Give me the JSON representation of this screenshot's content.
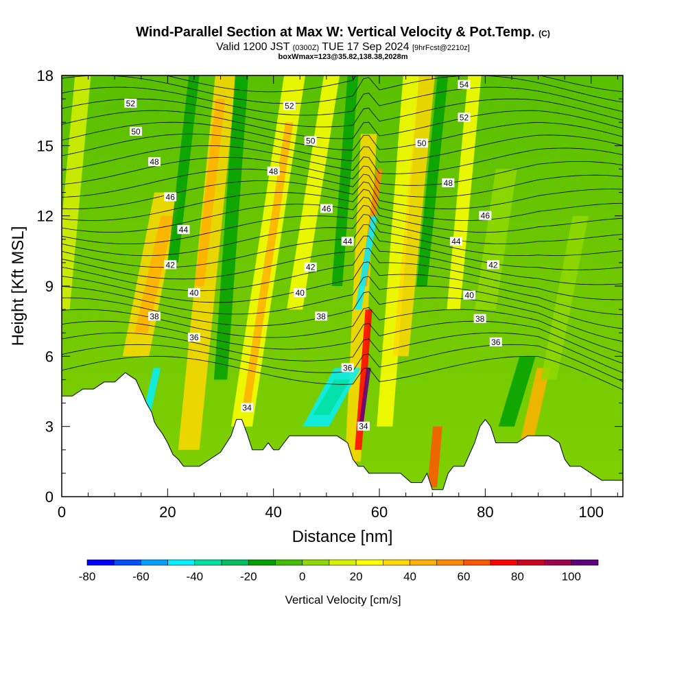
{
  "header": {
    "title": "Wind-Parallel Section at Max W: Vertical Velocity & Pot.Temp.",
    "title_mark": "(C)",
    "valid_prefix": "Valid 1200 JST",
    "valid_utc": "(0300Z)",
    "valid_date": "TUE 17 Sep 2024",
    "forecast": "[9hrFcst@2210z]",
    "box_info": "boxWmax=123@35.82,138.38,2028m"
  },
  "chart_data": {
    "type": "heatmap",
    "xlabel": "Distance [nm]",
    "ylabel": "Height [Kft MSL]",
    "xlim": [
      0,
      106
    ],
    "ylim": [
      0,
      18
    ],
    "x_ticks": [
      0,
      20,
      40,
      60,
      80,
      100
    ],
    "y_ticks": [
      0,
      3,
      6,
      9,
      12,
      15,
      18
    ],
    "x_tick_labels": [
      "0",
      "20",
      "40",
      "60",
      "80",
      "100"
    ],
    "y_tick_labels": [
      "0",
      "3",
      "6",
      "9",
      "12",
      "15",
      "18"
    ],
    "terrain": {
      "x": [
        0,
        2,
        4,
        6,
        8,
        10,
        12,
        14,
        15,
        16,
        17,
        17.5,
        18,
        19,
        20,
        21,
        22,
        23,
        24,
        26,
        28,
        30,
        32,
        33,
        34,
        35,
        36,
        37,
        38,
        39,
        40,
        41,
        42,
        43,
        44,
        46,
        48,
        50,
        52,
        54,
        55,
        56,
        57,
        58,
        59,
        60,
        62,
        64,
        66,
        67,
        68,
        69,
        70,
        71,
        72,
        73,
        74,
        76,
        78,
        79,
        80,
        81,
        82,
        84,
        86,
        88,
        90,
        92,
        94,
        95,
        96,
        98,
        100,
        102,
        104,
        106
      ],
      "y": [
        4.3,
        4.3,
        4.6,
        4.6,
        4.9,
        4.9,
        5.3,
        5.0,
        4.5,
        4.0,
        3.6,
        3.2,
        3.0,
        2.7,
        2.3,
        1.8,
        1.6,
        1.3,
        1.3,
        1.3,
        1.6,
        1.9,
        2.6,
        3.3,
        3.3,
        2.7,
        2.0,
        2.0,
        2.0,
        2.3,
        2.0,
        2.0,
        2.3,
        2.6,
        2.6,
        2.6,
        2.6,
        2.6,
        2.6,
        2.3,
        1.6,
        1.3,
        1.3,
        1.0,
        1.0,
        1.0,
        1.0,
        1.0,
        0.6,
        0.6,
        0.6,
        1.0,
        0.3,
        0.3,
        0.3,
        1.0,
        1.3,
        1.3,
        2.3,
        3.0,
        3.3,
        3.0,
        2.3,
        2.3,
        2.3,
        2.6,
        2.6,
        2.6,
        2.3,
        1.6,
        1.3,
        1.3,
        1.0,
        0.7,
        0.7,
        0.7
      ]
    },
    "theta_contours": [
      {
        "value": 34,
        "label_x": 35,
        "label_y": 3.8
      },
      {
        "value": 36,
        "label_x": 25,
        "label_y": 6.8
      },
      {
        "value": 38,
        "label_x": 17.5,
        "label_y": 7.7
      },
      {
        "value": 40,
        "label_x": 25,
        "label_y": 8.7
      },
      {
        "value": 42,
        "label_x": 20.5,
        "label_y": 9.9
      },
      {
        "value": 44,
        "label_x": 23,
        "label_y": 11.4
      },
      {
        "value": 46,
        "label_x": 20.5,
        "label_y": 12.8
      },
      {
        "value": 48,
        "label_x": 17.5,
        "label_y": 14.3
      },
      {
        "value": 50,
        "label_x": 14,
        "label_y": 15.6
      },
      {
        "value": 52,
        "label_x": 13,
        "label_y": 16.8
      },
      {
        "value": 34,
        "label_x": 57,
        "label_y": 3.0
      },
      {
        "value": 36,
        "label_x": 54,
        "label_y": 5.5
      },
      {
        "value": 38,
        "label_x": 49,
        "label_y": 7.7
      },
      {
        "value": 40,
        "label_x": 45,
        "label_y": 8.7
      },
      {
        "value": 42,
        "label_x": 47,
        "label_y": 9.8
      },
      {
        "value": 44,
        "label_x": 54,
        "label_y": 10.9
      },
      {
        "value": 46,
        "label_x": 50,
        "label_y": 12.3
      },
      {
        "value": 48,
        "label_x": 40,
        "label_y": 13.9
      },
      {
        "value": 50,
        "label_x": 47,
        "label_y": 15.2
      },
      {
        "value": 52,
        "label_x": 43,
        "label_y": 16.7
      },
      {
        "value": 36,
        "label_x": 82,
        "label_y": 6.6
      },
      {
        "value": 38,
        "label_x": 79,
        "label_y": 7.6
      },
      {
        "value": 40,
        "label_x": 77,
        "label_y": 8.6
      },
      {
        "value": 42,
        "label_x": 81.5,
        "label_y": 9.9
      },
      {
        "value": 44,
        "label_x": 74.5,
        "label_y": 10.9
      },
      {
        "value": 46,
        "label_x": 80,
        "label_y": 12.0
      },
      {
        "value": 48,
        "label_x": 73,
        "label_y": 13.4
      },
      {
        "value": 50,
        "label_x": 68,
        "label_y": 15.1
      },
      {
        "value": 52,
        "label_x": 76,
        "label_y": 16.2
      },
      {
        "value": 54,
        "label_x": 76,
        "label_y": 17.6
      }
    ],
    "colorbar": {
      "title": "Vertical Velocity [cm/s]",
      "bounds": [
        -80,
        -70,
        -60,
        -50,
        -40,
        -30,
        -20,
        -10,
        0,
        10,
        20,
        30,
        40,
        50,
        60,
        70,
        80,
        90,
        100,
        110
      ],
      "tick_values": [
        -80,
        -60,
        -40,
        -20,
        0,
        20,
        40,
        60,
        80,
        100
      ],
      "tick_labels": [
        "-80",
        "-60",
        "-40",
        "-20",
        "0",
        "20",
        "40",
        "60",
        "80",
        "100"
      ],
      "colors": [
        "#0000ff",
        "#0050ff",
        "#00a0ff",
        "#00f0ff",
        "#00e0a0",
        "#00c060",
        "#00a000",
        "#40c000",
        "#90d800",
        "#d8f000",
        "#ffff00",
        "#ffd800",
        "#ffb000",
        "#ff8800",
        "#ff5500",
        "#ff0000",
        "#d00020",
        "#a00050",
        "#600080"
      ]
    }
  }
}
